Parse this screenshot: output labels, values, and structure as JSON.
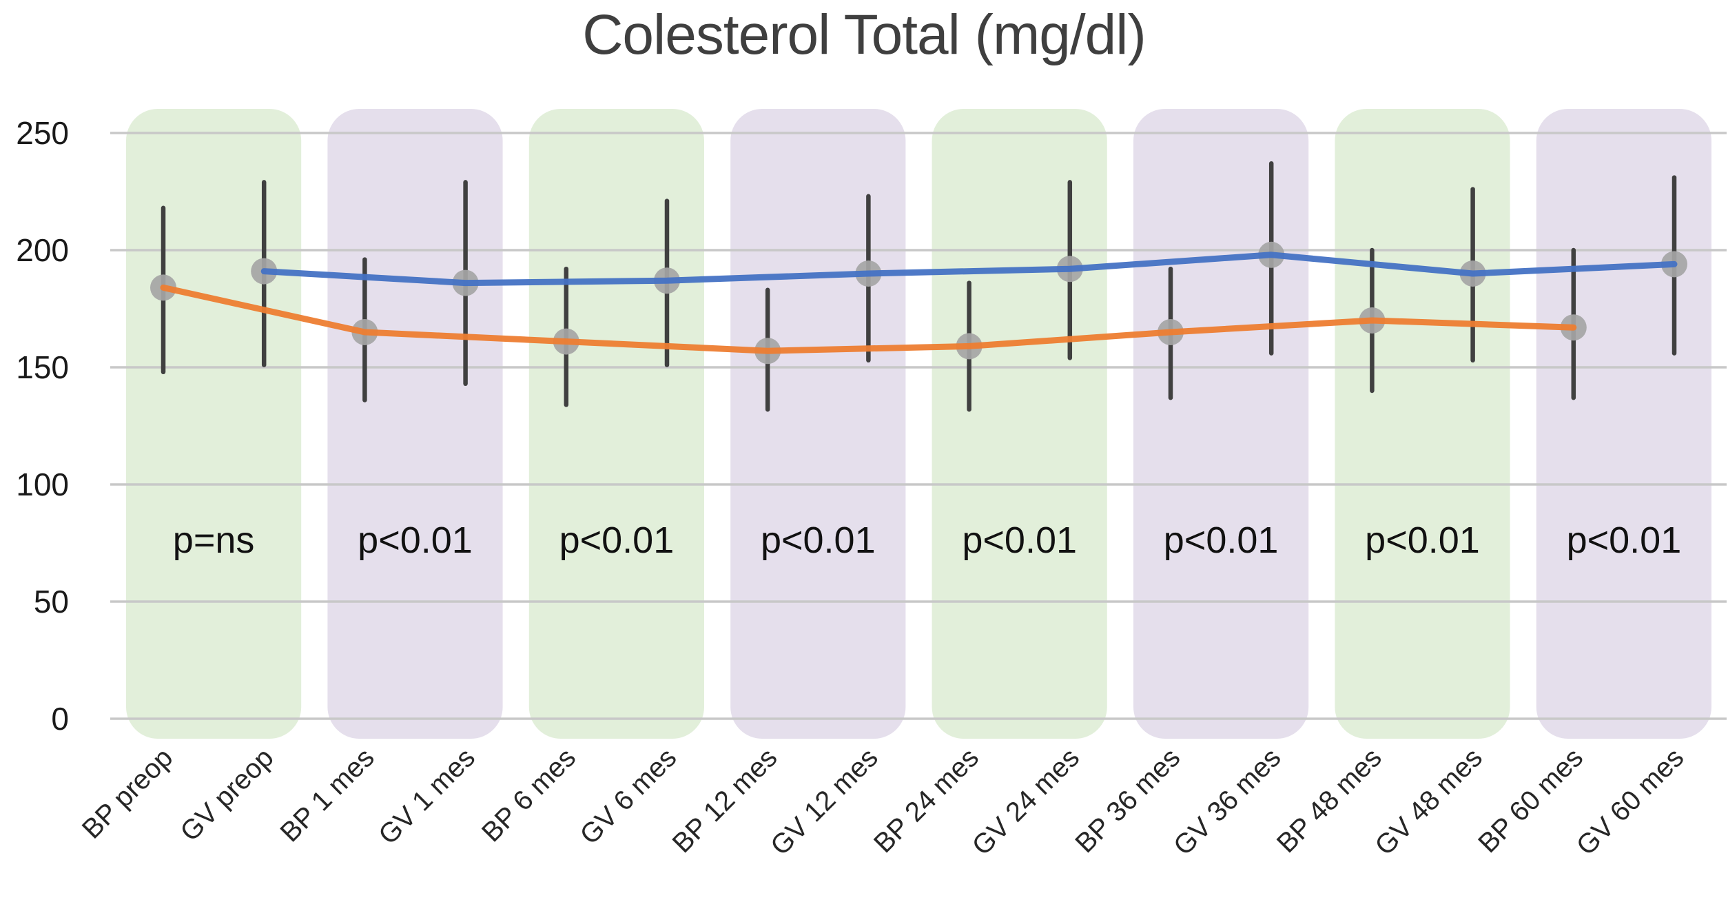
{
  "chart_data": {
    "type": "line",
    "title": "Colesterol Total (mg/dl)",
    "xlabel": "",
    "ylabel": "",
    "ylim": [
      0,
      250
    ],
    "yticks": [
      0,
      50,
      100,
      150,
      200,
      250
    ],
    "grid": true,
    "legend": "none",
    "categories": [
      "BP preop",
      "GV preop",
      "BP 1 mes",
      "GV 1 mes",
      "BP 6 mes",
      "GV 6 mes",
      "BP 12 mes",
      "GV 12 mes",
      "BP 24 mes",
      "GV 24 mes",
      "BP 36 mes",
      "GV 36 mes",
      "BP 48 mes",
      "GV 48 mes",
      "BP 60 mes",
      "GV 60 mes"
    ],
    "series": [
      {
        "name": "BP",
        "color": "#ED7D31",
        "category_indices": [
          0,
          2,
          4,
          6,
          8,
          10,
          12,
          14
        ],
        "values": [
          184,
          165,
          161,
          157,
          159,
          165,
          170,
          167
        ],
        "error_low": [
          148,
          136,
          134,
          132,
          132,
          137,
          140,
          137
        ],
        "error_high": [
          218,
          196,
          192,
          183,
          186,
          192,
          200,
          200
        ]
      },
      {
        "name": "GV",
        "color": "#4472C4",
        "category_indices": [
          1,
          3,
          5,
          7,
          9,
          11,
          13,
          15
        ],
        "values": [
          191,
          186,
          187,
          190,
          192,
          198,
          190,
          194
        ],
        "error_low": [
          151,
          143,
          151,
          153,
          154,
          156,
          153,
          156
        ],
        "error_high": [
          229,
          229,
          221,
          223,
          229,
          237,
          226,
          231
        ]
      }
    ],
    "bands": [
      {
        "period": "preop",
        "p_label": "p=ns",
        "fill": "#E2EFDA"
      },
      {
        "period": "1 mes",
        "p_label": "p<0.01",
        "fill": "#E5DFEC"
      },
      {
        "period": "6 mes",
        "p_label": "p<0.01",
        "fill": "#E2EFDA"
      },
      {
        "period": "12 mes",
        "p_label": "p<0.01",
        "fill": "#E5DFEC"
      },
      {
        "period": "24 mes",
        "p_label": "p<0.01",
        "fill": "#E2EFDA"
      },
      {
        "period": "36 mes",
        "p_label": "p<0.01",
        "fill": "#E5DFEC"
      },
      {
        "period": "48 mes",
        "p_label": "p<0.01",
        "fill": "#E2EFDA"
      },
      {
        "period": "60 mes",
        "p_label": "p<0.01",
        "fill": "#E5DFEC"
      }
    ],
    "colors": {
      "marker": "#A5A5A5",
      "error_bar": "#404040",
      "gridline": "#C8C8C8",
      "tick_text": "#1A1A1A",
      "xlabel_text": "#262626",
      "p_text": "#111111",
      "title_text": "#3F3F3F"
    }
  }
}
